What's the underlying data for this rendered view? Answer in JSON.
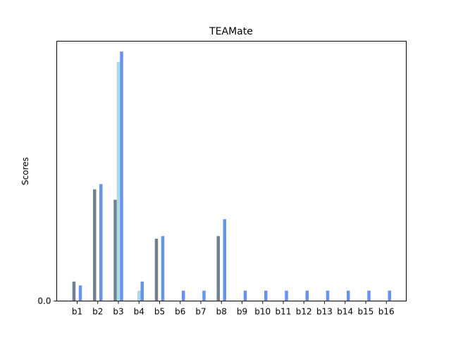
{
  "chart_data": {
    "type": "bar",
    "title": "TEAMate",
    "xlabel": "",
    "ylabel": "Scores",
    "yticks": [
      "0.0"
    ],
    "ylim": [
      0,
      1.0
    ],
    "grid": false,
    "categories": [
      "b1",
      "b2",
      "b3",
      "b4",
      "b5",
      "b6",
      "b7",
      "b8",
      "b9",
      "b10",
      "b11",
      "b12",
      "b13",
      "b14",
      "b15",
      "b16"
    ],
    "series": [
      {
        "color": "#708090",
        "values": [
          0.075,
          0.43,
          0.39,
          0.0,
          0.24,
          0.0,
          0.0,
          0.25,
          0.0,
          0.0,
          0.0,
          0.0,
          0.0,
          0.0,
          0.0,
          0.0
        ]
      },
      {
        "color": "#ADD8E6",
        "values": [
          0.0,
          0.0,
          0.92,
          0.04,
          0.0,
          0.0,
          0.0,
          0.0,
          0.0,
          0.0,
          0.0,
          0.0,
          0.0,
          0.0,
          0.0,
          0.0
        ]
      },
      {
        "color": "#6495ED",
        "values": [
          0.06,
          0.45,
          0.96,
          0.075,
          0.25,
          0.04,
          0.04,
          0.315,
          0.04,
          0.04,
          0.04,
          0.04,
          0.04,
          0.04,
          0.04,
          0.04
        ]
      }
    ]
  }
}
